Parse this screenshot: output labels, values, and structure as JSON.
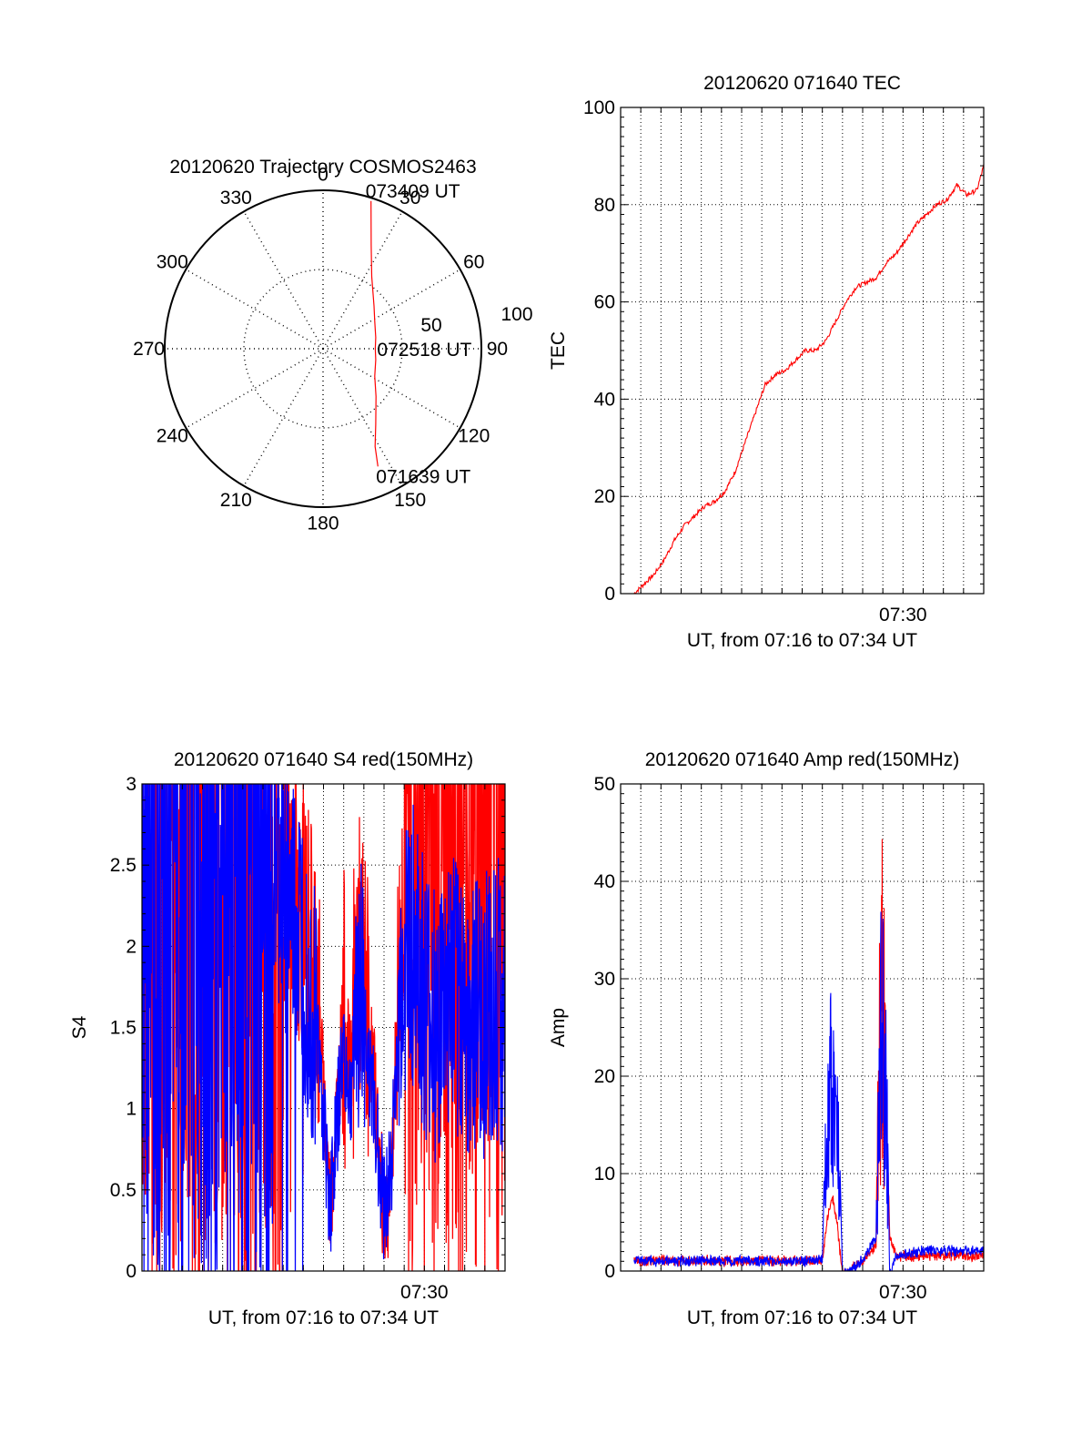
{
  "colors": {
    "red": "#ff0000",
    "blue": "#0000ff",
    "axis": "#000000",
    "grid": "#000000"
  },
  "chart_data": [
    {
      "id": "trajectory",
      "type": "polar",
      "title": "20120620 Trajectory COSMOS2463",
      "azimuth_labels": [
        "0",
        "30",
        "60",
        "90",
        "120",
        "150",
        "180",
        "210",
        "240",
        "270",
        "300",
        "330"
      ],
      "radial_labels": [
        "50",
        "100"
      ],
      "rlim": [
        0,
        100
      ],
      "grid": true,
      "series": [
        {
          "color": "red",
          "points": [
            [
              18,
              98
            ],
            [
              25,
              72
            ],
            [
              34,
              55
            ],
            [
              50,
              42
            ],
            [
              62,
              37
            ],
            [
              78,
              34
            ],
            [
              90,
              33
            ],
            [
              102,
              34
            ],
            [
              118,
              37
            ],
            [
              132,
              45
            ],
            [
              145,
              58
            ],
            [
              152,
              70
            ],
            [
              155,
              82
            ]
          ]
        }
      ],
      "annotations": [
        {
          "text": "073409 UT",
          "az": 18,
          "r": 98
        },
        {
          "text": "072518 UT",
          "az": 90,
          "r": 33
        },
        {
          "text": "071639 UT",
          "az": 155,
          "r": 82
        }
      ]
    },
    {
      "id": "tec",
      "type": "line",
      "title": "20120620 071640 TEC",
      "xlabel": "UT, from 07:16 to 07:34 UT",
      "ylabel": "TEC",
      "xlim": [
        "07:16",
        "07:34"
      ],
      "ylim": [
        0,
        100
      ],
      "yticks": [
        "0",
        "20",
        "40",
        "60",
        "80",
        "100"
      ],
      "xticks": [
        {
          "t": "07:30",
          "label": "07:30"
        }
      ],
      "grid": true,
      "series": [
        {
          "color": "red",
          "t": [
            "07:16:40",
            "07:17:10",
            "07:17:40",
            "07:18:10",
            "07:18:40",
            "07:19:10",
            "07:19:40",
            "07:20:10",
            "07:20:40",
            "07:21:10",
            "07:21:40",
            "07:22:10",
            "07:22:40",
            "07:23:10",
            "07:23:40",
            "07:24:10",
            "07:24:40",
            "07:25:10",
            "07:25:40",
            "07:26:10",
            "07:26:40",
            "07:27:10",
            "07:27:40",
            "07:28:10",
            "07:28:40",
            "07:29:10",
            "07:29:40",
            "07:30:10",
            "07:30:40",
            "07:31:10",
            "07:31:40",
            "07:32:10",
            "07:32:40",
            "07:33:10",
            "07:33:40",
            "07:34:00"
          ],
          "values": [
            0,
            2,
            4,
            7,
            11,
            14,
            16,
            18,
            19,
            21,
            25,
            31,
            37,
            43,
            45,
            46,
            48,
            50,
            50,
            52,
            56,
            60,
            63,
            64,
            65,
            68,
            70,
            73,
            76,
            78,
            80,
            81,
            84,
            82,
            83,
            88
          ]
        }
      ]
    },
    {
      "id": "s4",
      "type": "line",
      "title": "20120620 071640 S4 red(150MHz)",
      "xlabel": "UT, from 07:16 to 07:34 UT",
      "ylabel": "S4",
      "xlim": [
        "07:16",
        "07:34"
      ],
      "ylim": [
        0,
        3
      ],
      "yticks": [
        "0",
        "0.5",
        "1",
        "1.5",
        "2",
        "2.5",
        "3"
      ],
      "xticks": [
        {
          "t": "07:30",
          "label": "07:30"
        }
      ],
      "grid": true,
      "series": [
        {
          "color": "red",
          "t": [
            "07:16:00",
            "07:17:00",
            "07:18:00",
            "07:19:00",
            "07:20:00",
            "07:21:00",
            "07:22:00",
            "07:23:00",
            "07:24:00",
            "07:24:40",
            "07:25:20",
            "07:26:00",
            "07:26:20",
            "07:26:40",
            "07:27:00",
            "07:27:30",
            "07:28:00",
            "07:28:20",
            "07:28:40",
            "07:29:00",
            "07:29:30",
            "07:30:00",
            "07:30:40",
            "07:31:20",
            "07:32:00",
            "07:32:40",
            "07:33:20",
            "07:34:00"
          ],
          "values": [
            3,
            3,
            3,
            3,
            2.9,
            2.8,
            2.7,
            2.5,
            2.2,
            1.8,
            0.4,
            1.6,
            1.2,
            2.0,
            1.8,
            1.2,
            0.3,
            0.5,
            1.6,
            2.5,
            2.8,
            3,
            3,
            3,
            3,
            3,
            3,
            3
          ]
        },
        {
          "color": "blue",
          "t": [
            "07:16:00",
            "07:17:00",
            "07:18:00",
            "07:19:00",
            "07:20:00",
            "07:21:00",
            "07:22:00",
            "07:23:00",
            "07:24:00",
            "07:24:40",
            "07:25:20",
            "07:26:00",
            "07:26:20",
            "07:26:40",
            "07:27:00",
            "07:27:30",
            "07:28:00",
            "07:28:20",
            "07:28:40",
            "07:29:00",
            "07:29:30",
            "07:30:00",
            "07:30:40",
            "07:31:20",
            "07:32:00",
            "07:32:40",
            "07:33:20",
            "07:34:00"
          ],
          "values": [
            3,
            3,
            3,
            3,
            2.9,
            2.8,
            2.6,
            2.4,
            2.0,
            1.5,
            0.4,
            1.4,
            1.0,
            1.8,
            1.6,
            1.0,
            0.4,
            0.6,
            1.4,
            2.0,
            2.0,
            1.6,
            1.5,
            1.7,
            1.6,
            1.5,
            1.7,
            1.6
          ]
        }
      ]
    },
    {
      "id": "amp",
      "type": "line",
      "title": "20120620 071640 Amp red(150MHz)",
      "xlabel": "UT, from 07:16 to 07:34 UT",
      "ylabel": "Amp",
      "xlim": [
        "07:16",
        "07:34"
      ],
      "ylim": [
        0,
        50
      ],
      "yticks": [
        "0",
        "10",
        "20",
        "30",
        "40",
        "50"
      ],
      "xticks": [
        {
          "t": "07:30",
          "label": "07:30"
        }
      ],
      "grid": true,
      "series": [
        {
          "color": "red",
          "t": [
            "07:16:40",
            "07:20:00",
            "07:24:00",
            "07:26:00",
            "07:26:15",
            "07:26:30",
            "07:26:45",
            "07:27:00",
            "07:28:00",
            "07:28:40",
            "07:28:50",
            "07:29:00",
            "07:29:10",
            "07:29:20",
            "07:29:40",
            "07:31:00",
            "07:34:00"
          ],
          "values": [
            1.5,
            1.5,
            1.5,
            1.5,
            6,
            8,
            5,
            0,
            1.5,
            3,
            38,
            46,
            25,
            4,
            2,
            2,
            2
          ]
        },
        {
          "color": "blue",
          "t": [
            "07:16:40",
            "07:20:00",
            "07:24:00",
            "07:26:00",
            "07:26:15",
            "07:26:30",
            "07:26:45",
            "07:27:00",
            "07:28:00",
            "07:28:40",
            "07:28:50",
            "07:29:00",
            "07:29:10",
            "07:29:20",
            "07:29:40",
            "07:31:00",
            "07:34:00"
          ],
          "values": [
            1.5,
            1.5,
            1.5,
            1.5,
            25,
            33,
            22,
            0,
            1.5,
            4,
            40,
            37,
            28,
            0,
            2,
            2.5,
            2.5
          ]
        }
      ]
    }
  ]
}
